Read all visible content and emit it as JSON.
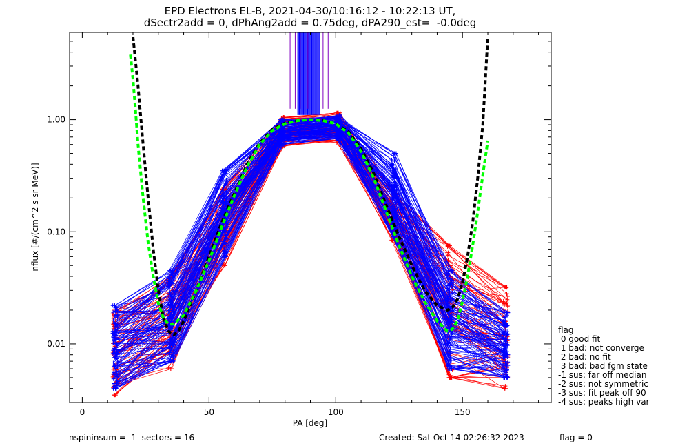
{
  "title_line1": "EPD Electrons EL-B, 2021-04-30/10:16:12 - 10:22:13 UT,",
  "title_line2": "dSectr2add = 0, dPhAng2add = 0.75deg, dPA290_est=  -0.0deg",
  "legend": {
    "title": "flag",
    "items": [
      " 0 good fit",
      " 1 bad: not converge",
      " 2 bad: no fit",
      " 3 bad: bad fgm state",
      "-1 sus: far off median",
      "-2 sus: not symmetric",
      "-3 sus: fit peak off 90",
      "-4 sus: peaks high var"
    ]
  },
  "footer": {
    "left": "nspininsum =  1  sectors = 16",
    "created": "Created: Sat Oct 14 02:26:32 2023",
    "flag": "flag = 0"
  },
  "colors": {
    "trace_red": "#ff0000",
    "trace_blue": "#0000ff",
    "fit_black": "#000000",
    "fit_green": "#00ff00",
    "spike_purple": "#8000c0"
  },
  "chart_data": {
    "type": "line",
    "xlabel": "PA [deg]",
    "ylabel": "nflux [#/(cm^2 s sr MeV)]",
    "xlim": [
      -5,
      185
    ],
    "ylim": [
      0.003,
      6.0
    ],
    "y_scale": "log",
    "x_ticks": [
      0,
      50,
      100,
      150
    ],
    "x_tick_labels": [
      "0",
      "50",
      "100",
      "150"
    ],
    "y_ticks": [
      0.01,
      0.1,
      1.0
    ],
    "y_tick_labels": [
      "0.01",
      "0.10",
      "1.00"
    ],
    "sector_pa": [
      13,
      35,
      56,
      79,
      101,
      123,
      145,
      167
    ],
    "series": [
      {
        "color": "#0000ff",
        "marker": "+",
        "style": "solid",
        "envelope_low": [
          0.004,
          0.007,
          0.06,
          0.6,
          0.68,
          0.09,
          0.006,
          0.005
        ],
        "envelope_high": [
          0.022,
          0.045,
          0.35,
          1.0,
          1.1,
          0.5,
          0.045,
          0.019
        ]
      },
      {
        "color": "#ff0000",
        "marker": "+",
        "style": "solid",
        "envelope_low": [
          0.0035,
          0.006,
          0.05,
          0.58,
          0.62,
          0.08,
          0.005,
          0.004
        ],
        "envelope_high": [
          0.02,
          0.04,
          0.24,
          1.05,
          1.15,
          0.22,
          0.075,
          0.032
        ]
      },
      {
        "color": "#000000",
        "style": "dashed",
        "x": [
          20,
          22,
          24,
          26,
          28,
          30,
          32,
          34,
          36,
          38,
          40,
          45,
          50,
          55,
          60,
          65,
          70,
          75,
          80,
          85,
          90,
          95,
          100,
          105,
          110,
          115,
          120,
          125,
          130,
          135,
          140,
          144,
          146,
          148,
          150,
          152,
          154,
          156,
          158,
          160
        ],
        "y": [
          5.5,
          2.0,
          0.6,
          0.2,
          0.07,
          0.03,
          0.017,
          0.013,
          0.012,
          0.013,
          0.016,
          0.03,
          0.06,
          0.12,
          0.22,
          0.4,
          0.62,
          0.82,
          0.93,
          0.98,
          1.0,
          0.98,
          0.92,
          0.78,
          0.55,
          0.33,
          0.17,
          0.09,
          0.05,
          0.03,
          0.022,
          0.02,
          0.021,
          0.025,
          0.035,
          0.06,
          0.12,
          0.3,
          0.9,
          5.5
        ]
      },
      {
        "color": "#00ff00",
        "style": "dashed",
        "x": [
          19,
          20,
          21,
          22,
          24,
          26,
          28,
          30,
          32,
          34,
          36,
          40,
          45,
          50,
          55,
          60,
          65,
          70,
          75,
          80,
          85,
          90,
          95,
          100,
          105,
          110,
          115,
          120,
          125,
          130,
          135,
          140,
          144,
          146,
          148,
          150,
          152,
          154,
          156,
          158,
          160
        ],
        "y": [
          3.8,
          2.3,
          1.2,
          0.6,
          0.2,
          0.08,
          0.04,
          0.023,
          0.017,
          0.015,
          0.015,
          0.018,
          0.03,
          0.055,
          0.11,
          0.21,
          0.38,
          0.6,
          0.8,
          0.92,
          0.98,
          1.0,
          0.98,
          0.92,
          0.76,
          0.52,
          0.3,
          0.15,
          0.075,
          0.04,
          0.024,
          0.016,
          0.013,
          0.0135,
          0.016,
          0.024,
          0.04,
          0.075,
          0.15,
          0.32,
          0.65
        ]
      }
    ]
  }
}
